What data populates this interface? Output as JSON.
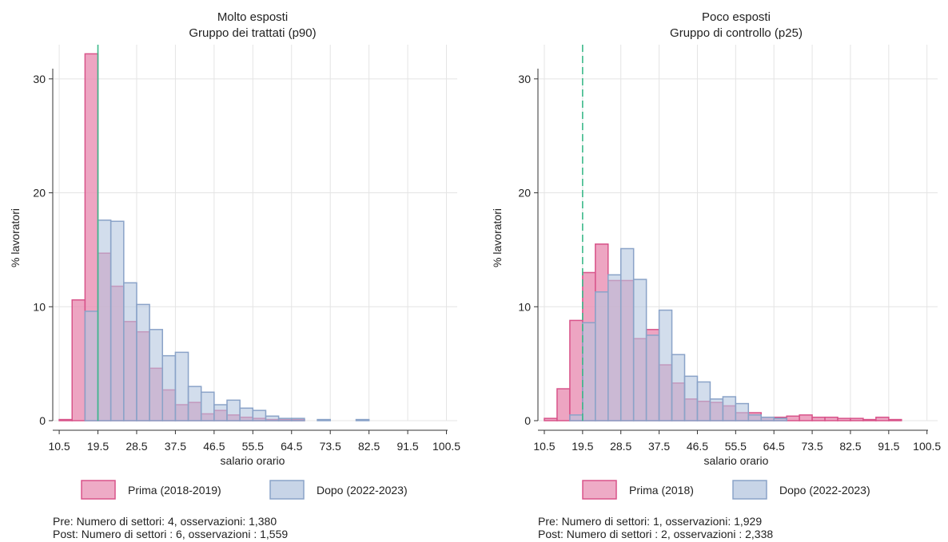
{
  "colors": {
    "pre_fill": "#e88fb3",
    "pre_stroke": "#d8548a",
    "post_fill": "#b4c6df",
    "post_stroke": "#8aa3c8",
    "vline": "#3cb98a"
  },
  "chart_data": [
    {
      "type": "histogram",
      "title": "Molto esposti",
      "subtitle": "Gruppo dei trattati (p90)",
      "xlabel": "salario orario",
      "ylabel": "% lavoratori",
      "xlim": [
        9,
        103
      ],
      "ylim": [
        0,
        33
      ],
      "bin_width": 3,
      "xticks": [
        "10.5",
        "19.5",
        "28.5",
        "37.5",
        "46.5",
        "55.5",
        "64.5",
        "73.5",
        "82.5",
        "91.5",
        "100.5"
      ],
      "xtick_values": [
        10.5,
        19.5,
        28.5,
        37.5,
        46.5,
        55.5,
        64.5,
        73.5,
        82.5,
        91.5,
        100.5
      ],
      "yticks": [
        "0",
        "10",
        "20",
        "30"
      ],
      "ytick_values": [
        0,
        10,
        20,
        30
      ],
      "vline": 19.5,
      "legend": {
        "pre": "Prima (2018-2019)",
        "post": "Dopo (2022-2023)"
      },
      "series": [
        {
          "name": "Prima (2018-2019)",
          "bin_starts": [
            10.5,
            13.5,
            16.5,
            19.5,
            22.5,
            25.5,
            28.5,
            31.5,
            34.5,
            37.5,
            40.5,
            43.5,
            46.5,
            49.5,
            52.5,
            55.5,
            58.5,
            61.5,
            64.5
          ],
          "values": [
            0.1,
            10.6,
            32.2,
            14.7,
            11.8,
            8.7,
            7.8,
            4.6,
            2.7,
            1.4,
            1.6,
            0.6,
            0.9,
            0.5,
            0.3,
            0.2,
            0.1,
            0.1,
            0.1
          ]
        },
        {
          "name": "Dopo (2022-2023)",
          "bin_starts": [
            16.5,
            19.5,
            22.5,
            25.5,
            28.5,
            31.5,
            34.5,
            37.5,
            40.5,
            43.5,
            46.5,
            49.5,
            52.5,
            55.5,
            58.5,
            61.5,
            64.5,
            70.5,
            79.5
          ],
          "values": [
            9.6,
            17.6,
            17.5,
            12.1,
            10.2,
            8.0,
            5.7,
            6.0,
            3.0,
            2.5,
            1.4,
            1.8,
            1.1,
            0.9,
            0.4,
            0.2,
            0.2,
            0.1,
            0.1
          ]
        }
      ],
      "notes": [
        "Pre: Numero di settori: 4, osservazioni: 1,380",
        "Post: Numero di settori : 6, osservazioni : 1,559"
      ]
    },
    {
      "type": "histogram",
      "title": "Poco esposti",
      "subtitle": "Gruppo di controllo (p25)",
      "xlabel": "salario orario",
      "ylabel": "% lavoratori",
      "xlim": [
        9,
        103
      ],
      "ylim": [
        0,
        33
      ],
      "bin_width": 3,
      "xticks": [
        "10.5",
        "19.5",
        "28.5",
        "37.5",
        "46.5",
        "55.5",
        "64.5",
        "73.5",
        "82.5",
        "91.5",
        "100.5"
      ],
      "xtick_values": [
        10.5,
        19.5,
        28.5,
        37.5,
        46.5,
        55.5,
        64.5,
        73.5,
        82.5,
        91.5,
        100.5
      ],
      "yticks": [
        "0",
        "10",
        "20",
        "30"
      ],
      "ytick_values": [
        0,
        10,
        20,
        30
      ],
      "vline": 19.5,
      "legend": {
        "pre": "Prima (2018)",
        "post": "Dopo (2022-2023)"
      },
      "series": [
        {
          "name": "Prima (2018)",
          "bin_starts": [
            10.5,
            13.5,
            16.5,
            19.5,
            22.5,
            25.5,
            28.5,
            31.5,
            34.5,
            37.5,
            40.5,
            43.5,
            46.5,
            49.5,
            52.5,
            55.5,
            58.5,
            61.5,
            64.5,
            67.5,
            70.5,
            73.5,
            76.5,
            79.5,
            82.5,
            85.5,
            88.5,
            91.5
          ],
          "values": [
            0.2,
            2.8,
            8.8,
            13.0,
            15.5,
            12.3,
            12.3,
            7.2,
            8.0,
            4.9,
            3.3,
            1.9,
            1.7,
            1.6,
            1.3,
            0.7,
            0.7,
            0.3,
            0.3,
            0.4,
            0.5,
            0.3,
            0.3,
            0.2,
            0.2,
            0.1,
            0.3,
            0.1
          ]
        },
        {
          "name": "Dopo (2022-2023)",
          "bin_starts": [
            16.5,
            19.5,
            22.5,
            25.5,
            28.5,
            31.5,
            34.5,
            37.5,
            40.5,
            43.5,
            46.5,
            49.5,
            52.5,
            55.5,
            58.5,
            61.5,
            64.5
          ],
          "values": [
            0.5,
            8.6,
            11.3,
            12.8,
            15.1,
            12.4,
            7.5,
            9.7,
            5.8,
            3.9,
            3.4,
            1.9,
            2.1,
            1.5,
            0.5,
            0.3,
            0.2
          ]
        }
      ],
      "notes": [
        "Pre: Numero di settori: 1, osservazioni: 1,929",
        "Post: Numero di settori : 2, osservazioni : 2,338"
      ]
    }
  ]
}
